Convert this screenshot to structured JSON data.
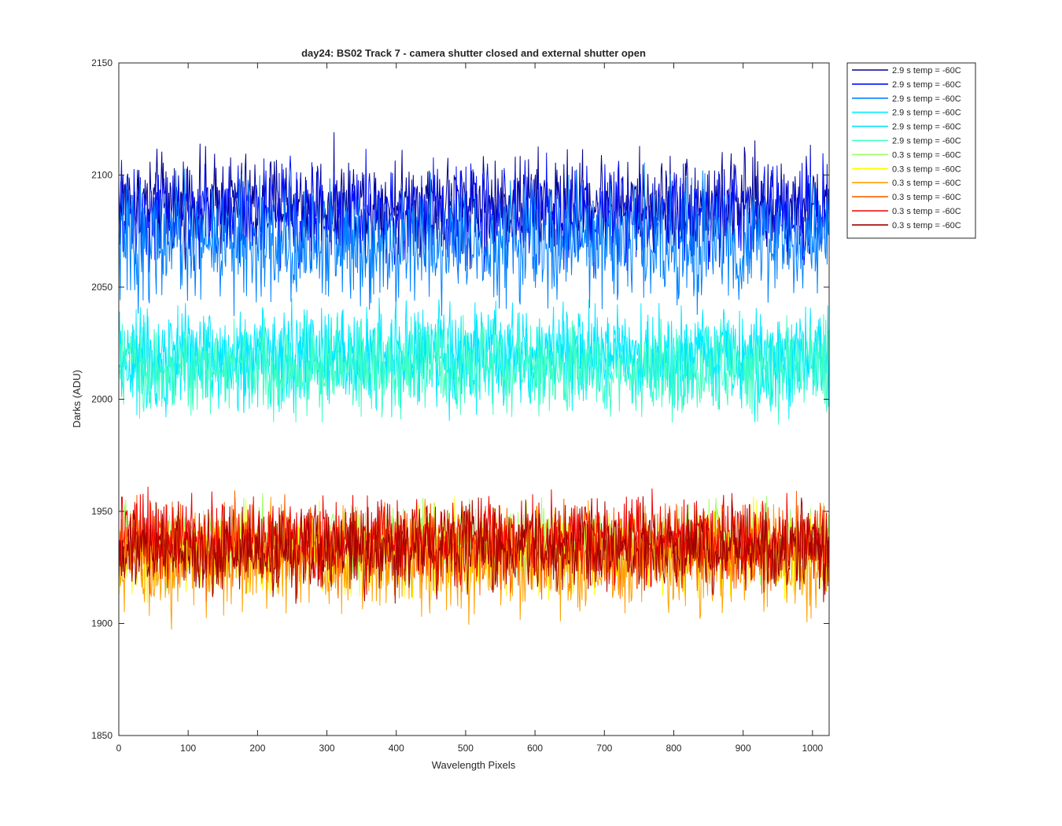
{
  "chart_data": {
    "type": "line",
    "title": "day24: BS02  Track 7 - camera shutter closed and external shutter open",
    "xlabel": "Wavelength Pixels",
    "ylabel": "Darks (ADU)",
    "xlim": [
      0,
      1024
    ],
    "ylim": [
      1850,
      2150
    ],
    "xticks": [
      0,
      100,
      200,
      300,
      400,
      500,
      600,
      700,
      800,
      900,
      1000
    ],
    "yticks": [
      1850,
      1900,
      1950,
      2000,
      2050,
      2100,
      2150
    ],
    "grid": false,
    "legend_position": "outside-top-right",
    "n_points": 1024,
    "series": [
      {
        "name": "2.9 s temp = -60C",
        "color": "#00008f",
        "mean": 2087,
        "amplitude": 11
      },
      {
        "name": "2.9 s temp = -60C",
        "color": "#0010ff",
        "mean": 2083,
        "amplitude": 11
      },
      {
        "name": "2.9 s temp = -60C",
        "color": "#0080ff",
        "mean": 2070,
        "amplitude": 13
      },
      {
        "name": "2.9 s temp = -60C",
        "color": "#00efff",
        "mean": 2016,
        "amplitude": 10
      },
      {
        "name": "2.9 s temp = -60C",
        "color": "#00e6ff",
        "mean": 2020,
        "amplitude": 10
      },
      {
        "name": "2.9 s temp = -60C",
        "color": "#40ffc0",
        "mean": 2014,
        "amplitude": 10
      },
      {
        "name": "0.3 s temp = -60C",
        "color": "#9fff60",
        "mean": 1936,
        "amplitude": 8
      },
      {
        "name": "0.3 s temp = -60C",
        "color": "#ffff00",
        "mean": 1932,
        "amplitude": 9
      },
      {
        "name": "0.3 s temp = -60C",
        "color": "#ffa000",
        "mean": 1928,
        "amplitude": 11
      },
      {
        "name": "0.3 s temp = -60C",
        "color": "#ff6000",
        "mean": 1934,
        "amplitude": 9
      },
      {
        "name": "0.3 s temp = -60C",
        "color": "#ef0000",
        "mean": 1938,
        "amplitude": 9
      },
      {
        "name": "0.3 s temp = -60C",
        "color": "#a00000",
        "mean": 1933,
        "amplitude": 9
      }
    ]
  }
}
